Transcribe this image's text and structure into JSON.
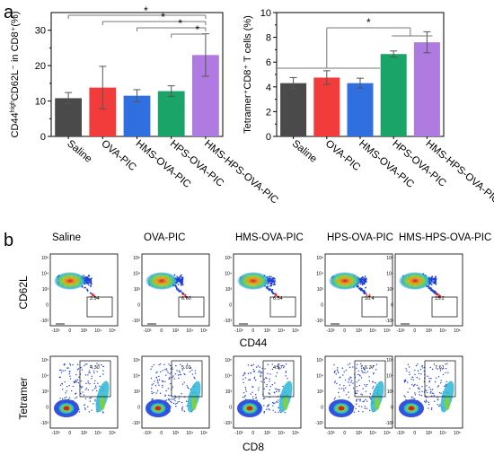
{
  "panel_labels": {
    "a": "a",
    "b": "b"
  },
  "colors": {
    "Saline": "#4a4a4a",
    "OVA-PIC": "#f23c3c",
    "HMS-OVA-PIC": "#2f6fe0",
    "HPS-OVA-PIC": "#1aa468",
    "HMS-HPS-OVA-PIC": "#b07be0"
  },
  "chart_data": [
    {
      "type": "bar",
      "categories": [
        "Saline",
        "OVA-PIC",
        "HMS-OVA-PIC",
        "HPS-OVA-PIC",
        "HMS-HPS-OVA-PIC"
      ],
      "values": [
        10.8,
        13.8,
        11.5,
        12.8,
        23.0
      ],
      "errors": [
        1.6,
        6.0,
        1.7,
        1.5,
        6.0
      ],
      "ylabel": "CD44highCD62L⁻ in CD8⁺(%)",
      "ylabel_sup": "high",
      "ylim": [
        0,
        35
      ],
      "yticks": [
        0,
        10,
        20,
        30
      ],
      "significance": [
        {
          "from": 0,
          "to": 4,
          "label": "*"
        },
        {
          "from": 1,
          "to": 4,
          "label": "*"
        },
        {
          "from": 2,
          "to": 4,
          "label": "*"
        },
        {
          "from": 3,
          "to": 4,
          "label": "*"
        }
      ]
    },
    {
      "type": "bar",
      "categories": [
        "Saline",
        "OVA-PIC",
        "HMS-OVA-PIC",
        "HPS-OVA-PIC",
        "HMS-HPS-OVA-PIC"
      ],
      "values": [
        4.3,
        4.75,
        4.3,
        6.65,
        7.6
      ],
      "errors": [
        0.45,
        0.55,
        0.4,
        0.25,
        0.85
      ],
      "ylabel": "Tetramer⁺CD8⁺ T cells (%)",
      "ylim": [
        0,
        10
      ],
      "yticks": [
        0,
        2,
        4,
        6,
        8,
        10
      ],
      "significance": [
        {
          "groupA": [
            0,
            1,
            2
          ],
          "groupB": [
            3,
            4
          ],
          "label": "*"
        }
      ]
    },
    {
      "type": "scatter",
      "title_row": [
        "Saline",
        "OVA-PIC",
        "HMS-OVA-PIC",
        "HPS-OVA-PIC",
        "HMS-HPS-OVA-PIC"
      ],
      "xlabel": "CD44",
      "ylabel": "CD62L",
      "gate_values": [
        "2.94",
        "6.60",
        "6.54",
        "10.4",
        "15.2"
      ],
      "xticks": [
        "-10³",
        "0",
        "10³",
        "10⁴",
        "10⁵"
      ],
      "yticks": [
        "10⁵",
        "10⁴",
        "10³",
        "0",
        "-10³"
      ]
    },
    {
      "type": "scatter",
      "xlabel": "CD8",
      "ylabel": "Tetramer",
      "gate_values": [
        "4.30",
        "5.01",
        "4.57",
        "6.27",
        "7.61"
      ],
      "xticks": [
        "-10³",
        "0",
        "10³",
        "10⁴",
        "10⁵"
      ],
      "yticks": [
        "10⁵",
        "10⁴",
        "10³",
        "0",
        "-10³"
      ]
    }
  ]
}
